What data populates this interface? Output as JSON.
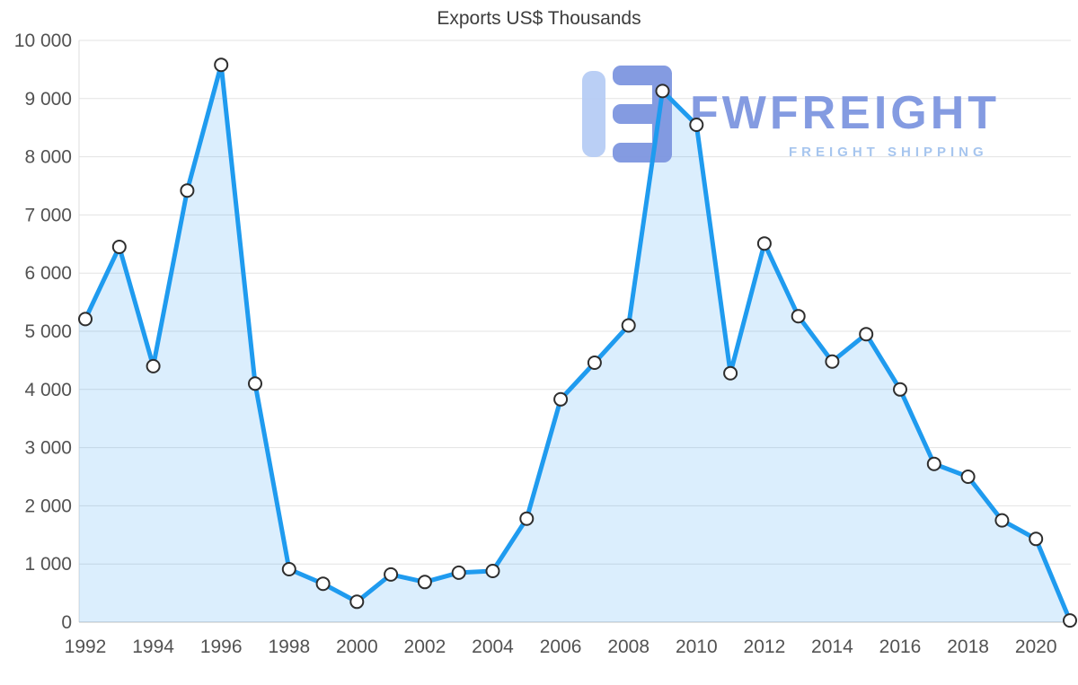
{
  "chart": {
    "title": "Exports US$ Thousands"
  },
  "watermark": {
    "brand": "FWFREIGHT",
    "subtitle": "FREIGHT SHIPPING"
  },
  "axes": {
    "y_tick_labels": [
      "0",
      "1 000",
      "2 000",
      "3 000",
      "4 000",
      "5 000",
      "6 000",
      "7 000",
      "8 000",
      "9 000",
      "10 000"
    ],
    "x_tick_labels": [
      "1992",
      "1994",
      "1996",
      "1998",
      "2000",
      "2002",
      "2004",
      "2006",
      "2008",
      "2010",
      "2012",
      "2014",
      "2016",
      "2018",
      "2020"
    ]
  },
  "colors": {
    "line": "#1f9bef",
    "area": "rgba(33, 150, 243, 0.16)",
    "grid": "#e3e3e3",
    "axis_left": "#dcdcdc",
    "axis_bottom": "#c2c2c2",
    "marker_fill": "#ffffff",
    "marker_stroke": "#2e2e2e",
    "logo_light": "#b7cdf5",
    "logo_dark": "#7e96e0"
  },
  "chart_data": {
    "type": "area",
    "title": "Exports US$ Thousands",
    "xlabel": "",
    "ylabel": "",
    "ylim": [
      0,
      10000
    ],
    "y_tick_step": 1000,
    "grid": true,
    "legend": false,
    "x": [
      1992,
      1993,
      1994,
      1995,
      1996,
      1997,
      1998,
      1999,
      2000,
      2001,
      2002,
      2003,
      2004,
      2005,
      2006,
      2007,
      2008,
      2009,
      2010,
      2011,
      2012,
      2013,
      2014,
      2015,
      2016,
      2017,
      2018,
      2019,
      2020,
      2021
    ],
    "values": [
      5210,
      6450,
      4400,
      7420,
      9580,
      4100,
      910,
      660,
      350,
      820,
      690,
      850,
      880,
      1780,
      3830,
      4460,
      5100,
      9130,
      8550,
      4280,
      6510,
      5260,
      4480,
      4950,
      4000,
      2720,
      2500,
      1750,
      1430,
      30
    ]
  }
}
